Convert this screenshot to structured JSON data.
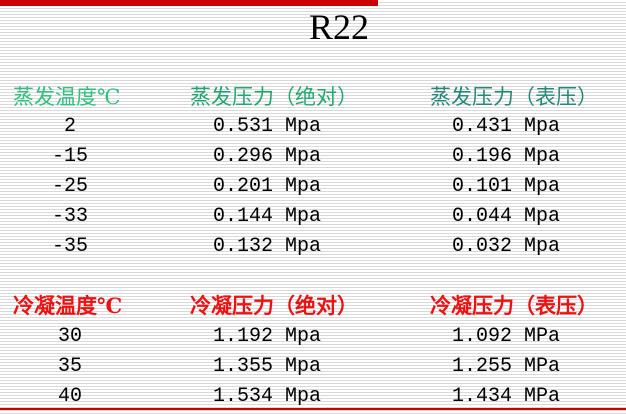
{
  "title": "R22",
  "evaporation": {
    "headers": [
      "蒸发温度℃",
      "蒸发压力（绝对）",
      "蒸发压力（表压）"
    ],
    "rows": [
      [
        "2",
        "0.531 Mpa",
        "0.431 Mpa"
      ],
      [
        "-15",
        "0.296 Mpa",
        "0.196 Mpa"
      ],
      [
        "-25",
        "0.201 Mpa",
        "0.101 Mpa"
      ],
      [
        "-33",
        "0.144 Mpa",
        "0.044 Mpa"
      ],
      [
        "-35",
        "0.132 Mpa",
        "0.032 Mpa"
      ]
    ]
  },
  "condensation": {
    "headers": [
      "冷凝温度℃",
      "冷凝压力（绝对）",
      "冷凝压力（表压）"
    ],
    "rows": [
      [
        "30",
        "1.192 Mpa",
        "1.092 MPa"
      ],
      [
        "35",
        "1.355 Mpa",
        "1.255 MPa"
      ],
      [
        "40",
        "1.534 Mpa",
        "1.434 MPa"
      ]
    ]
  },
  "colors": {
    "accent_bar": "#cc0000",
    "evap_header": "#2ec27e",
    "cond_header": "#ee1111"
  }
}
